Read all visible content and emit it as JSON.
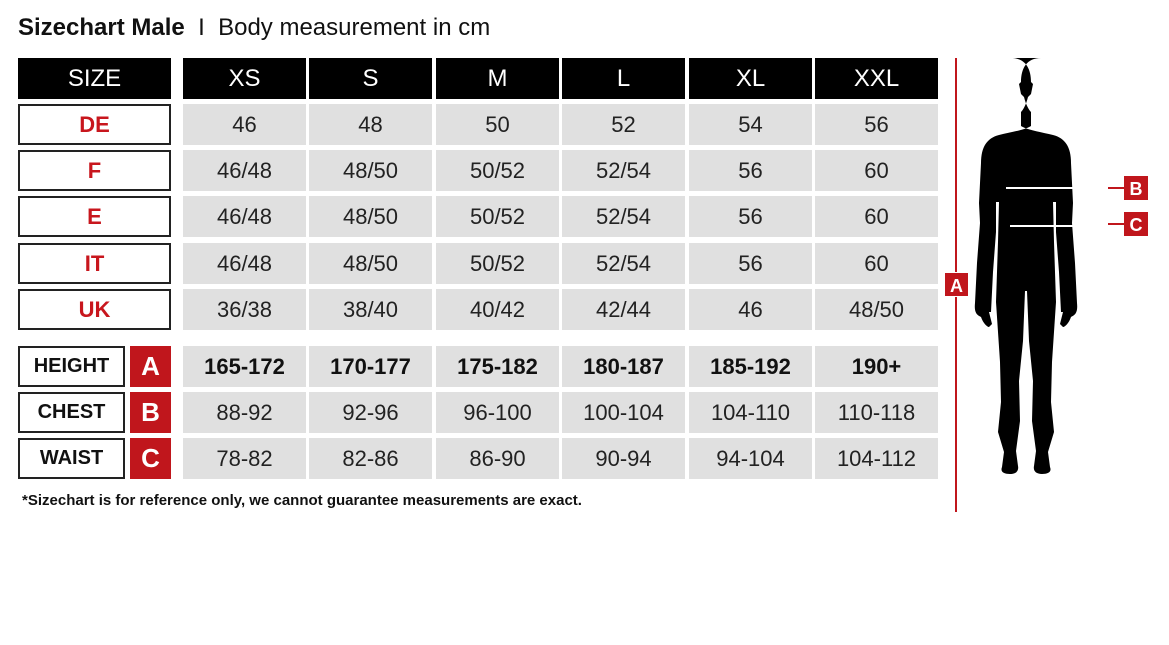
{
  "title": {
    "bold": "Sizechart Male",
    "separator": "I",
    "subtitle": "Body measurement in cm"
  },
  "header": {
    "label": "SIZE",
    "sizes": [
      "XS",
      "S",
      "M",
      "L",
      "XL",
      "XXL"
    ]
  },
  "regions": [
    {
      "label": "DE",
      "values": [
        "46",
        "48",
        "50",
        "52",
        "54",
        "56"
      ]
    },
    {
      "label": "F",
      "values": [
        "46/48",
        "48/50",
        "50/52",
        "52/54",
        "56",
        "60"
      ]
    },
    {
      "label": "E",
      "values": [
        "46/48",
        "48/50",
        "50/52",
        "52/54",
        "56",
        "60"
      ]
    },
    {
      "label": "IT",
      "values": [
        "46/48",
        "48/50",
        "50/52",
        "52/54",
        "56",
        "60"
      ]
    },
    {
      "label": "UK",
      "values": [
        "36/38",
        "38/40",
        "40/42",
        "42/44",
        "46",
        "48/50"
      ]
    }
  ],
  "measurements": [
    {
      "label": "HEIGHT",
      "letter": "A",
      "values": [
        "165-172",
        "170-177",
        "175-182",
        "180-187",
        "185-192",
        "190+"
      ]
    },
    {
      "label": "CHEST",
      "letter": "B",
      "values": [
        "88-92",
        "92-96",
        "96-100",
        "100-104",
        "104-110",
        "110-118"
      ]
    },
    {
      "label": "WAIST",
      "letter": "C",
      "values": [
        "78-82",
        "82-86",
        "86-90",
        "90-94",
        "94-104",
        "104-112"
      ]
    }
  ],
  "figure": {
    "height_marker": "A",
    "chest_marker": "B",
    "waist_marker": "C"
  },
  "footnote": "*Sizechart is for reference only, we cannot guarantee measurements are exact.",
  "colors": {
    "accent": "#c0161c",
    "header": "#000000",
    "cell": "#e0e0e0"
  }
}
